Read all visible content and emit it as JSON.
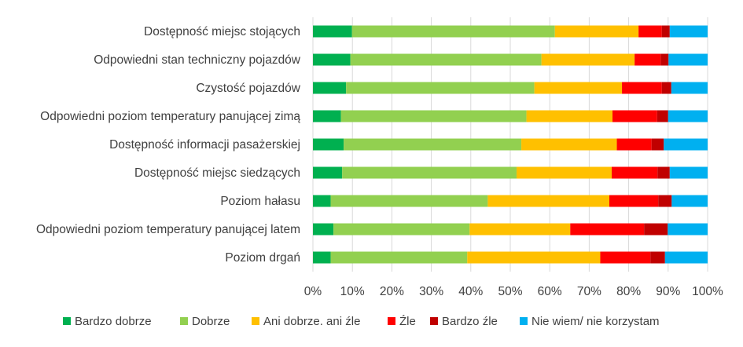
{
  "chart_data": {
    "type": "bar",
    "orientation": "horizontal",
    "stacked": "100%",
    "categories": [
      "Dostępność miejsc stojących",
      "Odpowiedni stan techniczny pojazdów",
      "Czystość pojazdów",
      "Odpowiedni poziom temperatury panującej zimą",
      "Dostępność informacji pasażerskiej",
      "Dostępność miejsc siedzących",
      "Poziom hałasu",
      "Odpowiedni poziom temperatury panującej latem",
      "Poziom drgań"
    ],
    "series": [
      {
        "name": "Bardzo dobrze",
        "color": "#00B050",
        "values": [
          9.9,
          9.5,
          8.4,
          7.1,
          7.8,
          7.4,
          4.5,
          5.2,
          4.5
        ]
      },
      {
        "name": "Dobrze",
        "color": "#92D050",
        "values": [
          51.4,
          48.4,
          47.7,
          47.0,
          45.0,
          44.2,
          39.8,
          34.5,
          34.6
        ]
      },
      {
        "name": "Ani dobrze. ani źle",
        "color": "#FFC000",
        "values": [
          21.2,
          23.6,
          22.2,
          21.8,
          24.2,
          24.1,
          30.8,
          25.5,
          33.7
        ]
      },
      {
        "name": "Źle",
        "color": "#FF0000",
        "values": [
          5.9,
          6.6,
          10.1,
          11.3,
          8.8,
          11.6,
          12.4,
          18.7,
          12.7
        ]
      },
      {
        "name": "Bardzo źle",
        "color": "#C00000",
        "values": [
          2.0,
          2.0,
          2.4,
          2.8,
          3.1,
          3.1,
          3.4,
          6.0,
          3.7
        ]
      },
      {
        "name": "Nie wiem/ nie korzystam",
        "color": "#00B0F0",
        "values": [
          9.6,
          9.9,
          9.2,
          10.0,
          11.1,
          9.6,
          9.1,
          10.1,
          10.8
        ]
      }
    ],
    "xlim": [
      0,
      100
    ],
    "x_ticks": [
      "0%",
      "10%",
      "20%",
      "30%",
      "40%",
      "50%",
      "60%",
      "70%",
      "80%",
      "90%",
      "100%"
    ],
    "grid": "vertical",
    "legend": "bottom",
    "title": "",
    "xlabel": "",
    "ylabel": ""
  }
}
